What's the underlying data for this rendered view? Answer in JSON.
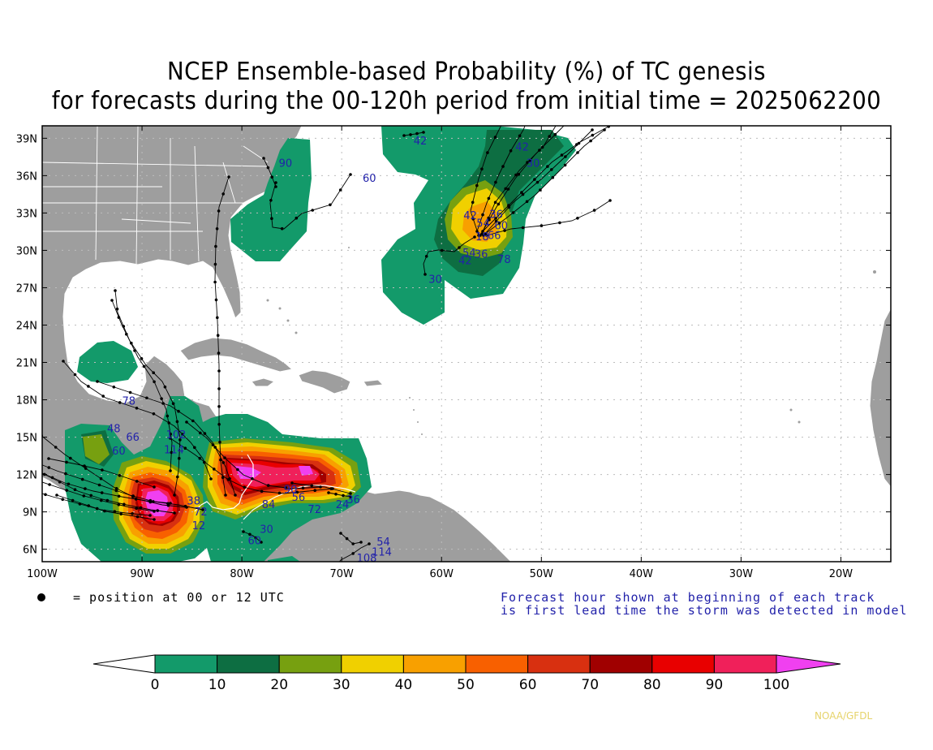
{
  "title": {
    "line1": "NCEP Ensemble-based Probability (%) of TC genesis",
    "line2": "for forecasts during the 00-120h period from initial time = 2025062200"
  },
  "axes": {
    "y_ticks": [
      {
        "label": "39N",
        "lat": 39
      },
      {
        "label": "36N",
        "lat": 36
      },
      {
        "label": "33N",
        "lat": 33
      },
      {
        "label": "30N",
        "lat": 30
      },
      {
        "label": "27N",
        "lat": 27
      },
      {
        "label": "24N",
        "lat": 24
      },
      {
        "label": "21N",
        "lat": 21
      },
      {
        "label": "18N",
        "lat": 18
      },
      {
        "label": "15N",
        "lat": 15
      },
      {
        "label": "12N",
        "lat": 12
      },
      {
        "label": "9N",
        "lat": 9
      },
      {
        "label": "6N",
        "lat": 6
      }
    ],
    "x_ticks": [
      {
        "label": "100W",
        "lon": -100
      },
      {
        "label": "90W",
        "lon": -90
      },
      {
        "label": "80W",
        "lon": -80
      },
      {
        "label": "70W",
        "lon": -70
      },
      {
        "label": "60W",
        "lon": -60
      },
      {
        "label": "50W",
        "lon": -50
      },
      {
        "label": "40W",
        "lon": -40
      },
      {
        "label": "30W",
        "lon": -30
      },
      {
        "label": "20W",
        "lon": -20
      }
    ],
    "lon_range": [
      -100,
      -15
    ],
    "lat_range": [
      5,
      40
    ]
  },
  "legend": {
    "dot_text": "= position at 00 or 12 UTC",
    "note_line1": "Forecast hour shown at beginning of each track",
    "note_line2": "is first lead time the storm was detected in model"
  },
  "colorbar": {
    "labels": [
      "0",
      "10",
      "20",
      "30",
      "40",
      "50",
      "60",
      "70",
      "80",
      "90",
      "100"
    ],
    "colors": [
      "#139a6a",
      "#0d6e42",
      "#77a010",
      "#f0d000",
      "#f8a000",
      "#f86000",
      "#d83010",
      "#a00000",
      "#e80000",
      "#f0205a",
      "#f040f0"
    ]
  },
  "credit": "NOAA/GFDL",
  "colors": {
    "land": "#9e9e9e",
    "track": "#000000",
    "track_label": "#2222aa",
    "grid": "#bdbdbd"
  },
  "track_labels": [
    {
      "text": "42",
      "lon": -62.8,
      "lat": 38.5
    },
    {
      "text": "90",
      "lon": -76.3,
      "lat": 36.7
    },
    {
      "text": "60",
      "lon": -67.9,
      "lat": 35.5
    },
    {
      "text": "30",
      "lon": -51.5,
      "lat": 36.7
    },
    {
      "text": "42",
      "lon": -52.6,
      "lat": 38.0
    },
    {
      "text": "42",
      "lon": -57.8,
      "lat": 32.5
    },
    {
      "text": "36",
      "lon": -55.2,
      "lat": 32.6
    },
    {
      "text": "54",
      "lon": -56.5,
      "lat": 31.9
    },
    {
      "text": "60",
      "lon": -54.7,
      "lat": 31.7
    },
    {
      "text": "18",
      "lon": -56.6,
      "lat": 30.8
    },
    {
      "text": "66",
      "lon": -55.4,
      "lat": 30.9
    },
    {
      "text": "54",
      "lon": -57.9,
      "lat": 29.5
    },
    {
      "text": "36",
      "lon": -56.7,
      "lat": 29.4
    },
    {
      "text": "42",
      "lon": -58.3,
      "lat": 28.9
    },
    {
      "text": "78",
      "lon": -54.4,
      "lat": 29.0
    },
    {
      "text": "30",
      "lon": -61.3,
      "lat": 27.4
    },
    {
      "text": "78",
      "lon": -92.0,
      "lat": 17.6
    },
    {
      "text": "48",
      "lon": -93.5,
      "lat": 15.4
    },
    {
      "text": "102",
      "lon": -87.6,
      "lat": 14.9
    },
    {
      "text": "66",
      "lon": -91.6,
      "lat": 14.7
    },
    {
      "text": "114",
      "lon": -87.8,
      "lat": 13.7
    },
    {
      "text": "60",
      "lon": -93.0,
      "lat": 13.6
    },
    {
      "text": "38",
      "lon": -85.5,
      "lat": 9.6
    },
    {
      "text": "72",
      "lon": -84.8,
      "lat": 8.7
    },
    {
      "text": "12",
      "lon": -85.0,
      "lat": 7.6
    },
    {
      "text": "84",
      "lon": -78.0,
      "lat": 9.3
    },
    {
      "text": "56",
      "lon": -75.0,
      "lat": 9.9
    },
    {
      "text": "72",
      "lon": -73.4,
      "lat": 8.9
    },
    {
      "text": "90",
      "lon": -75.8,
      "lat": 10.5
    },
    {
      "text": "24",
      "lon": -70.6,
      "lat": 9.3
    },
    {
      "text": "36",
      "lon": -69.5,
      "lat": 9.7
    },
    {
      "text": "30",
      "lon": -78.2,
      "lat": 7.3
    },
    {
      "text": "60",
      "lon": -79.4,
      "lat": 6.4
    },
    {
      "text": "54",
      "lon": -66.5,
      "lat": 6.3
    },
    {
      "text": "114",
      "lon": -67.0,
      "lat": 5.5
    },
    {
      "text": "108",
      "lon": -68.5,
      "lat": 5.0
    }
  ]
}
